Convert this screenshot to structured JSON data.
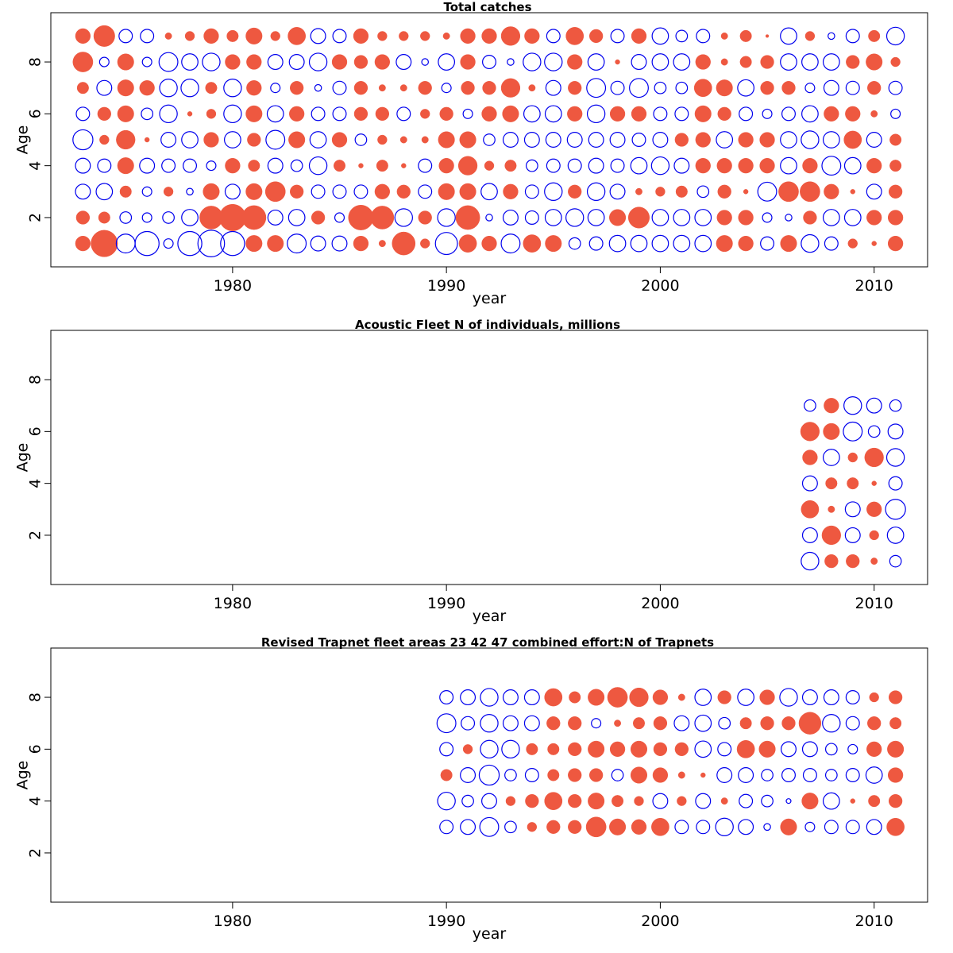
{
  "colors": {
    "positive": "#ee5840",
    "negative": "#0000ee",
    "axis": "#000000"
  },
  "chart_data": [
    {
      "type": "scatter",
      "subtype": "bubble",
      "title": "Total catches",
      "xlabel": "year",
      "ylabel": "Age",
      "xlim": [
        1971.5,
        2012.5
      ],
      "ylim": [
        0.1,
        9.9
      ],
      "xticks": [
        1980,
        1990,
        2000,
        2010
      ],
      "yticks": [
        2,
        4,
        6,
        8
      ],
      "years": [
        1973,
        1974,
        1975,
        1976,
        1977,
        1978,
        1979,
        1980,
        1981,
        1982,
        1983,
        1984,
        1985,
        1986,
        1987,
        1988,
        1989,
        1990,
        1991,
        1992,
        1993,
        1994,
        1995,
        1996,
        1997,
        1998,
        1999,
        2000,
        2001,
        2002,
        2003,
        2004,
        2005,
        2006,
        2007,
        2008,
        2009,
        2010,
        2011
      ],
      "ages": [
        1,
        2,
        3,
        4,
        5,
        6,
        7,
        8,
        9
      ],
      "residuals": [
        [
          0.5,
          1.6,
          -0.8,
          -1.3,
          -0.2,
          -1.3,
          -1.6,
          -1.3,
          0.6,
          0.6,
          -0.8,
          -0.5,
          -0.5,
          0.5,
          0.1,
          1.2,
          0.2,
          -1.1,
          0.7,
          0.5,
          -0.8,
          0.7,
          0.6,
          -0.3,
          -0.4,
          -0.6,
          -0.6,
          -0.6,
          -0.6,
          -0.6,
          0.6,
          0.5,
          -0.4,
          0.6,
          -0.7,
          -0.4,
          0.2,
          0.05,
          0.5
        ],
        [
          0.4,
          0.3,
          -0.3,
          -0.2,
          -0.3,
          -0.6,
          1.2,
          1.6,
          1.3,
          -0.5,
          -0.6,
          0.4,
          -0.2,
          1.4,
          1.2,
          -0.7,
          0.4,
          -0.7,
          1.3,
          -0.1,
          -0.5,
          -0.4,
          -0.6,
          -0.7,
          -0.6,
          0.6,
          1.0,
          -0.6,
          -0.6,
          -0.6,
          0.5,
          0.5,
          -0.2,
          -0.1,
          0.4,
          -0.6,
          -0.6,
          0.5,
          0.5
        ],
        [
          -0.5,
          -0.6,
          0.3,
          -0.2,
          0.2,
          -0.1,
          0.6,
          -0.5,
          0.6,
          0.9,
          0.4,
          -0.4,
          -0.4,
          -0.4,
          0.5,
          0.4,
          -0.4,
          0.6,
          0.6,
          -0.6,
          0.5,
          -0.4,
          -0.7,
          0.4,
          -0.7,
          -0.5,
          0.1,
          0.2,
          0.3,
          -0.3,
          0.4,
          0.05,
          -0.8,
          0.9,
          0.9,
          0.5,
          0.05,
          -0.5,
          0.4
        ],
        [
          -0.5,
          -0.4,
          0.6,
          -0.5,
          -0.4,
          -0.4,
          -0.2,
          0.5,
          0.3,
          -0.5,
          -0.3,
          -0.7,
          0.3,
          0.05,
          0.3,
          0.05,
          -0.4,
          0.5,
          0.8,
          0.2,
          0.3,
          -0.3,
          -0.4,
          -0.4,
          -0.5,
          -0.4,
          -0.6,
          -0.7,
          -0.5,
          0.5,
          0.5,
          0.5,
          0.5,
          -0.6,
          0.5,
          -0.8,
          -0.6,
          0.5,
          0.3
        ],
        [
          -0.9,
          0.2,
          0.8,
          0.05,
          -0.5,
          -0.6,
          0.5,
          -0.6,
          0.4,
          -0.8,
          0.6,
          -0.6,
          0.5,
          -0.3,
          0.2,
          0.1,
          0.1,
          0.6,
          0.6,
          -0.3,
          -0.5,
          -0.5,
          -0.5,
          -0.5,
          -0.5,
          -0.5,
          -0.4,
          -0.5,
          0.4,
          0.5,
          -0.6,
          0.5,
          0.5,
          -0.6,
          -0.7,
          -0.6,
          0.7,
          -0.5,
          0.3
        ],
        [
          -0.4,
          0.4,
          0.6,
          -0.3,
          -0.7,
          0.05,
          0.2,
          -0.7,
          0.6,
          -0.6,
          0.5,
          -0.4,
          -0.4,
          0.4,
          0.4,
          -0.4,
          0.2,
          0.4,
          -0.2,
          0.5,
          0.6,
          -0.6,
          -0.6,
          0.5,
          -0.7,
          0.5,
          0.5,
          -0.4,
          -0.4,
          0.6,
          0.4,
          -0.4,
          -0.2,
          -0.4,
          -0.6,
          0.5,
          0.5,
          0.1,
          -0.2
        ],
        [
          0.3,
          -0.5,
          0.6,
          0.5,
          -0.7,
          -0.7,
          0.3,
          -0.7,
          0.5,
          -0.2,
          0.4,
          -0.1,
          -0.4,
          0.4,
          0.1,
          0.1,
          0.4,
          -0.2,
          0.4,
          0.4,
          0.8,
          0.1,
          -0.5,
          0.4,
          -0.8,
          -0.4,
          -0.8,
          -0.3,
          -0.3,
          0.7,
          0.6,
          -0.6,
          0.4,
          0.4,
          -0.2,
          -0.5,
          -0.4,
          0.4,
          -0.4
        ],
        [
          0.9,
          -0.2,
          0.6,
          -0.2,
          -0.8,
          -0.6,
          -0.7,
          0.5,
          0.5,
          -0.5,
          -0.5,
          -0.7,
          0.5,
          0.4,
          0.5,
          -0.5,
          -0.1,
          -0.6,
          0.5,
          -0.4,
          -0.1,
          -0.7,
          -0.7,
          0.5,
          -0.6,
          0.05,
          -0.5,
          -0.6,
          -0.6,
          0.5,
          0.1,
          0.3,
          0.4,
          -0.6,
          -0.6,
          -0.6,
          0.4,
          0.6,
          0.2
        ],
        [
          0.5,
          1.0,
          -0.4,
          -0.4,
          0.1,
          0.2,
          0.5,
          0.3,
          0.6,
          0.2,
          0.7,
          -0.5,
          -0.4,
          0.5,
          0.2,
          0.2,
          0.2,
          0.1,
          0.5,
          0.5,
          0.8,
          0.5,
          -0.4,
          0.7,
          0.4,
          -0.4,
          0.5,
          -0.6,
          -0.3,
          -0.4,
          0.1,
          0.3,
          0.02,
          -0.6,
          0.2,
          -0.1,
          -0.4,
          0.3,
          -0.7
        ]
      ]
    },
    {
      "type": "scatter",
      "subtype": "bubble",
      "title": "Acoustic Fleet  N of individuals, millions",
      "xlabel": "year",
      "ylabel": "Age",
      "xlim": [
        1971.5,
        2012.5
      ],
      "ylim": [
        0.1,
        9.9
      ],
      "xticks": [
        1980,
        1990,
        2000,
        2010
      ],
      "yticks": [
        2,
        4,
        6,
        8
      ],
      "years": [
        2007,
        2008,
        2009,
        2010,
        2011
      ],
      "ages": [
        1,
        2,
        3,
        4,
        5,
        6,
        7
      ],
      "residuals": [
        [
          -0.7,
          0.4,
          0.4,
          0.1,
          -0.3
        ],
        [
          -0.5,
          0.8,
          -0.5,
          0.2,
          -0.6
        ],
        [
          0.7,
          0.1,
          -0.5,
          0.5,
          -0.9
        ],
        [
          -0.5,
          0.3,
          0.3,
          0.05,
          -0.4
        ],
        [
          0.5,
          -0.6,
          0.2,
          0.8,
          -0.7
        ],
        [
          0.8,
          0.6,
          -0.8,
          -0.3,
          -0.5
        ],
        [
          -0.3,
          0.5,
          -0.7,
          -0.5,
          -0.3
        ]
      ]
    },
    {
      "type": "scatter",
      "subtype": "bubble",
      "title": "Revised Trapnet fleet areas 23 42 47 combined  effort:N of Trapnets",
      "xlabel": "year",
      "ylabel": "Age",
      "xlim": [
        1971.5,
        2012.5
      ],
      "ylim": [
        0.1,
        9.9
      ],
      "xticks": [
        1980,
        1990,
        2000,
        2010
      ],
      "yticks": [
        2,
        4,
        6,
        8
      ],
      "years": [
        1990,
        1991,
        1992,
        1993,
        1994,
        1995,
        1996,
        1997,
        1998,
        1999,
        2000,
        2001,
        2002,
        2003,
        2004,
        2005,
        2006,
        2007,
        2008,
        2009,
        2010,
        2011
      ],
      "ages": [
        3,
        4,
        5,
        6,
        7,
        8
      ],
      "residuals": [
        [
          -0.4,
          -0.5,
          -0.8,
          -0.3,
          0.2,
          0.4,
          0.4,
          0.9,
          0.6,
          0.5,
          0.7,
          -0.4,
          -0.4,
          -0.7,
          -0.5,
          -0.1,
          0.6,
          -0.2,
          -0.4,
          -0.4,
          -0.5,
          0.7
        ],
        [
          -0.7,
          -0.3,
          -0.5,
          0.2,
          0.4,
          0.7,
          0.4,
          0.6,
          0.3,
          0.2,
          -0.5,
          0.2,
          -0.5,
          0.1,
          -0.4,
          -0.3,
          -0.05,
          0.6,
          -0.6,
          0.05,
          0.3,
          0.4
        ],
        [
          0.3,
          -0.5,
          -0.9,
          -0.3,
          -0.4,
          0.3,
          0.4,
          0.4,
          -0.3,
          0.6,
          0.5,
          0.1,
          0.05,
          -0.5,
          -0.5,
          -0.3,
          -0.4,
          -0.4,
          -0.3,
          -0.4,
          -0.6,
          0.5
        ],
        [
          -0.4,
          0.2,
          -0.7,
          -0.7,
          0.3,
          0.3,
          0.4,
          0.6,
          0.5,
          0.6,
          0.4,
          0.4,
          -0.6,
          -0.4,
          0.7,
          0.6,
          -0.5,
          -0.5,
          -0.3,
          -0.2,
          0.5,
          0.6
        ],
        [
          -0.8,
          -0.4,
          -0.7,
          -0.5,
          -0.5,
          0.4,
          0.4,
          -0.2,
          0.1,
          0.3,
          0.4,
          -0.5,
          -0.6,
          -0.3,
          0.3,
          0.4,
          0.4,
          1.1,
          -0.7,
          -0.4,
          0.4,
          0.3
        ],
        [
          -0.4,
          -0.5,
          -0.7,
          -0.5,
          -0.5,
          0.7,
          0.3,
          0.6,
          0.9,
          0.8,
          0.5,
          0.1,
          -0.6,
          0.4,
          -0.6,
          0.5,
          -0.7,
          -0.5,
          -0.5,
          -0.4,
          0.2,
          0.4
        ]
      ]
    }
  ]
}
